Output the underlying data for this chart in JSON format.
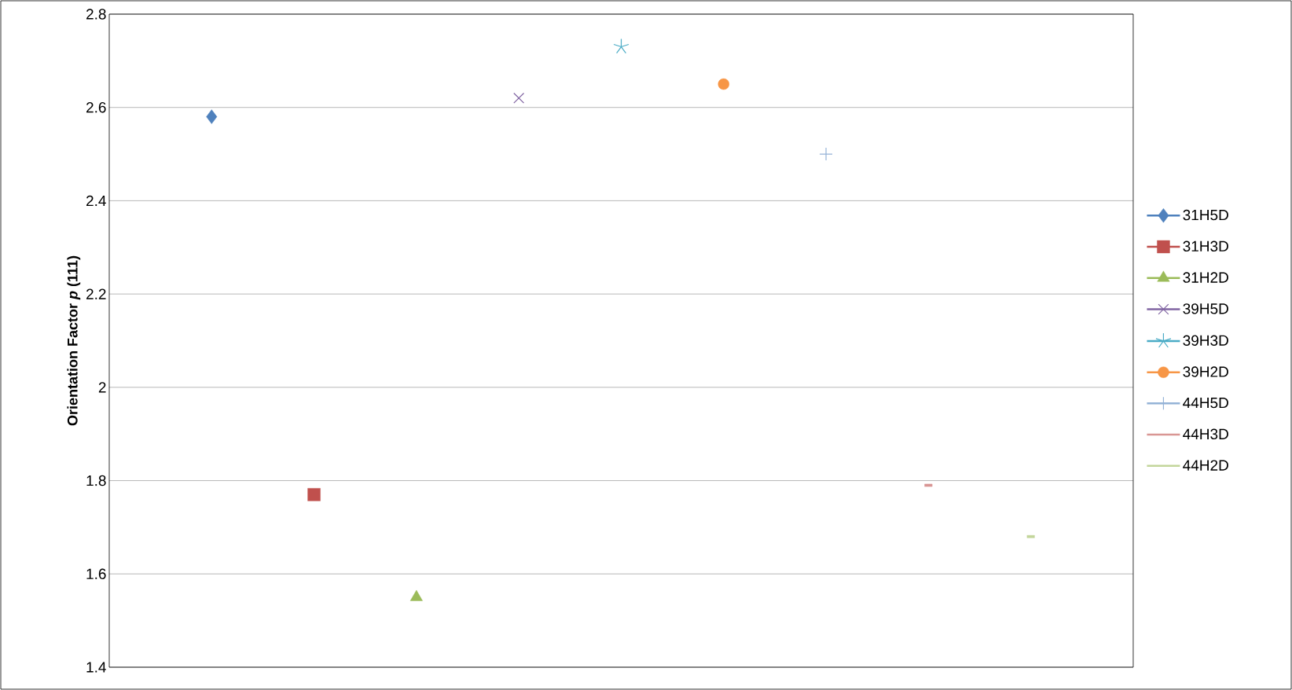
{
  "chart_data": {
    "type": "scatter",
    "ylabel": "Orientation Factor *p* (111)",
    "categories": [
      null,
      null,
      null,
      null,
      null,
      null,
      null,
      null,
      null
    ],
    "series": [
      {
        "name": "31H5D",
        "color": "#4f81bd",
        "marker": "diamond",
        "values": [
          2.58,
          null,
          null,
          null,
          null,
          null,
          null,
          null,
          null
        ]
      },
      {
        "name": "31H3D",
        "color": "#c0504d",
        "marker": "square",
        "values": [
          null,
          1.77,
          null,
          null,
          null,
          null,
          null,
          null,
          null
        ]
      },
      {
        "name": "31H2D",
        "color": "#9bbb59",
        "marker": "triangle",
        "values": [
          null,
          null,
          1.55,
          null,
          null,
          null,
          null,
          null,
          null
        ]
      },
      {
        "name": "39H5D",
        "color": "#8064a2",
        "marker": "cross",
        "values": [
          null,
          null,
          null,
          2.62,
          null,
          null,
          null,
          null,
          null
        ]
      },
      {
        "name": "39H3D",
        "color": "#4bacc6",
        "marker": "cross",
        "values": [
          null,
          null,
          null,
          null,
          2.73,
          null,
          null,
          null,
          null
        ]
      },
      {
        "name": "39H2D",
        "color": "#f79646",
        "marker": "circle",
        "values": [
          null,
          null,
          null,
          null,
          null,
          2.65,
          null,
          null,
          null
        ]
      },
      {
        "name": "44H5D",
        "color": "#95b3d7",
        "marker": "plus",
        "values": [
          null,
          null,
          null,
          null,
          null,
          null,
          2.5,
          null,
          null
        ]
      },
      {
        "name": "44H3D",
        "color": "#d99694",
        "marker": "square",
        "values": [
          null,
          null,
          null,
          null,
          null,
          null,
          null,
          1.79,
          null
        ]
      },
      {
        "name": "44H2D",
        "color": "#c3d69b",
        "marker": "square",
        "values": [
          null,
          null,
          null,
          null,
          null,
          null,
          null,
          null,
          1.68
        ]
      }
    ],
    "ylim": [
      1.4,
      2.8
    ],
    "yticks": [
      {
        "value": 1.4,
        "label": "1.4"
      },
      {
        "value": 1.6,
        "label": "1.6"
      },
      {
        "value": 1.8,
        "label": "1.8"
      },
      2,
      {
        "value": 2.2,
        "label": "2.2"
      },
      {
        "value": 2.4,
        "label": "2.4"
      },
      {
        "value": 2.6,
        "label": "2.6"
      },
      {
        "value": 2.8,
        "label": "2.8"
      }
    ],
    "grid": "y",
    "legend": "right",
    "tick_labels": "y"
  }
}
